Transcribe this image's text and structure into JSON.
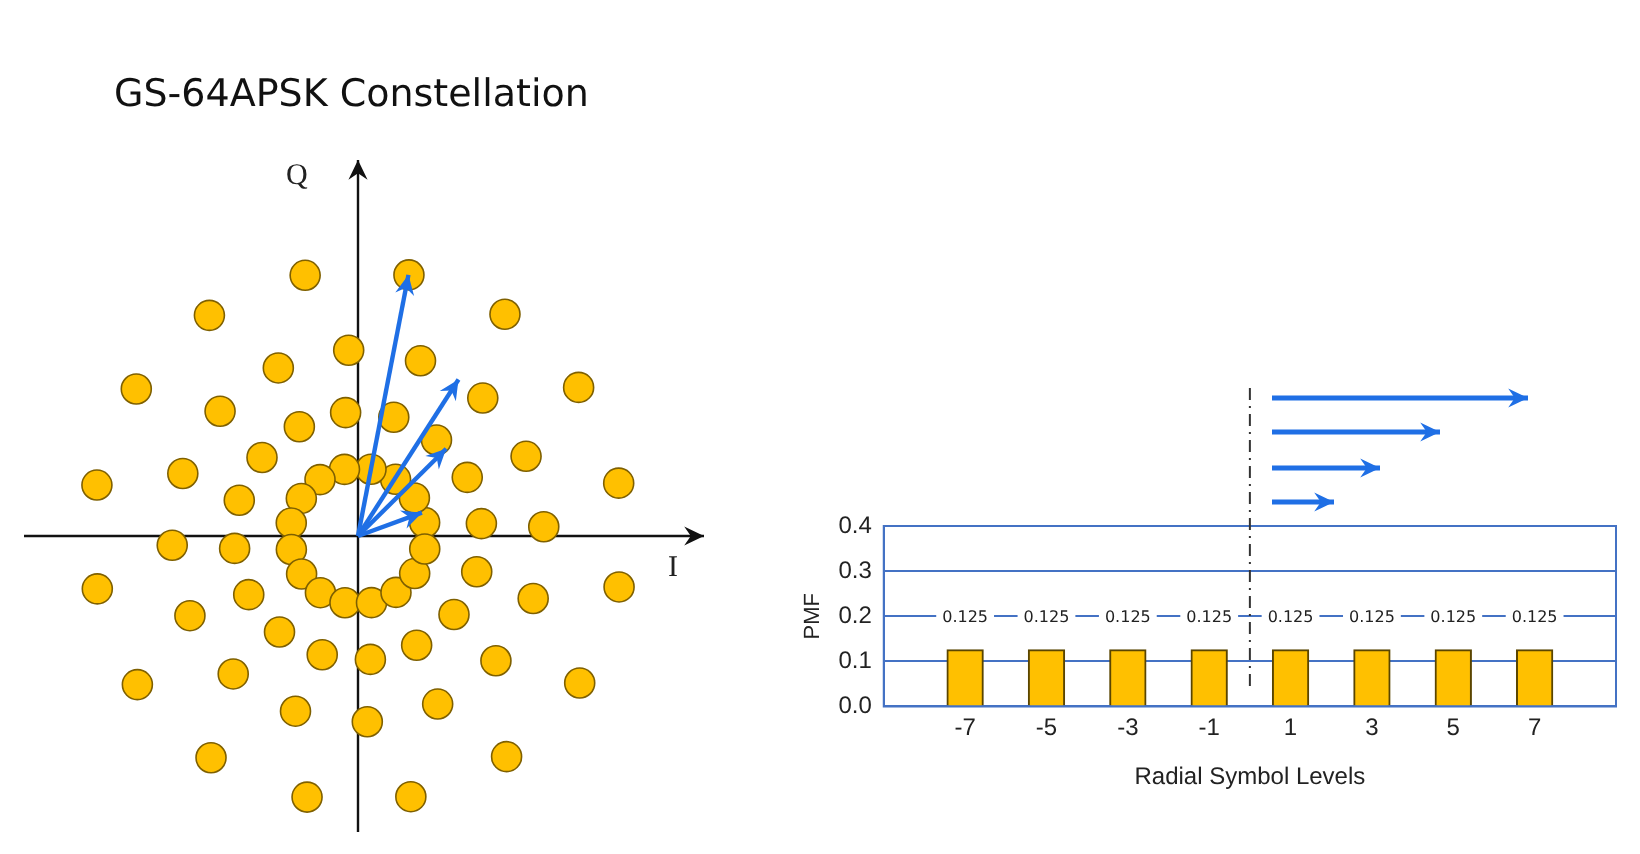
{
  "chart_data": [
    {
      "type": "other",
      "title": "GS-64APSK Constellation",
      "annotations": [
        "Q",
        "I"
      ]
    },
    {
      "type": "bar",
      "x": [
        -7,
        -5,
        -3,
        -1,
        1,
        3,
        5,
        7
      ],
      "values": [
        0.125,
        0.125,
        0.125,
        0.125,
        0.125,
        0.125,
        0.125,
        0.125
      ],
      "color": "#ffc000",
      "xlim": [
        -9,
        9
      ],
      "xticks": [
        -7,
        -5,
        -3,
        -1,
        1,
        3,
        5,
        7
      ],
      "ylim": [
        0,
        0.4
      ],
      "ref_lines": [
        {
          "axis": "x",
          "value": 0,
          "color": "#333333",
          "line_style": "dashed"
        }
      ],
      "yticks": [
        {
          "value": 0,
          "label": "0.0"
        },
        {
          "value": 0.1,
          "label": "0.1"
        },
        {
          "value": 0.2,
          "label": "0.2"
        },
        {
          "value": 0.3,
          "label": "0.3"
        },
        {
          "value": 0.4,
          "label": "0.4"
        }
      ],
      "grid": "y",
      "data_labels": true,
      "xlabel": "Radial Symbol Levels",
      "ylabel": "PMF"
    }
  ]
}
